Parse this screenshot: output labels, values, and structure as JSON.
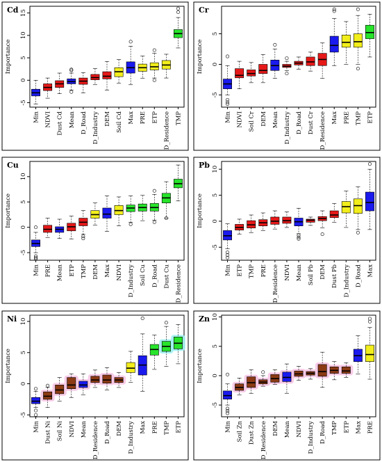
{
  "colors": {
    "blue": "#1a1aee",
    "red": "#e61919",
    "yellow": "#f2ee1c",
    "green": "#27e42b",
    "halo_pink": "#f7c6e4",
    "halo_cyan": "#9ef0ef",
    "brown": "#8b3a14"
  },
  "chart_data": [
    {
      "type": "box",
      "title": "Cd",
      "ylabel": "Importance",
      "ylim": [
        -6,
        16.5
      ],
      "yticks": [
        -5,
        0,
        5,
        10,
        15
      ],
      "categories": [
        "Min",
        "NDVI",
        "Dust Cd",
        "Mean",
        "D_Road",
        "D_Industry",
        "DEM",
        "Soil Cd",
        "Max",
        "PRE",
        "ETP",
        "D_Residence",
        "TMP"
      ],
      "colors": [
        "blue",
        "red",
        "red",
        "blue",
        "red",
        "red",
        "red",
        "yellow",
        "blue",
        "yellow",
        "yellow",
        "yellow",
        "green"
      ],
      "boxes": [
        {
          "min": -5.3,
          "q1": -3.5,
          "median": -2.8,
          "q3": -2.0,
          "max": 0.0,
          "outliers": []
        },
        {
          "min": -4.0,
          "q1": -2.3,
          "median": -1.6,
          "q3": -0.8,
          "max": 0.5,
          "outliers": []
        },
        {
          "min": -3.0,
          "q1": -1.6,
          "median": -0.8,
          "q3": -0.1,
          "max": 1.6,
          "outliers": []
        },
        {
          "min": -2.2,
          "q1": -0.8,
          "median": -0.3,
          "q3": 0.3,
          "max": 1.6,
          "outliers": [
            2.2,
            2.4,
            -2.6
          ]
        },
        {
          "min": -2.8,
          "q1": -0.9,
          "median": -0.2,
          "q3": 0.5,
          "max": 1.7,
          "outliers": []
        },
        {
          "min": -1.0,
          "q1": 0.1,
          "median": 0.6,
          "q3": 1.3,
          "max": 2.6,
          "outliers": []
        },
        {
          "min": -2.2,
          "q1": 0.3,
          "median": 0.9,
          "q3": 1.9,
          "max": 4.2,
          "outliers": []
        },
        {
          "min": -0.7,
          "q1": 0.8,
          "median": 1.9,
          "q3": 2.8,
          "max": 4.6,
          "outliers": []
        },
        {
          "min": -1.0,
          "q1": 1.6,
          "median": 2.8,
          "q3": 4.1,
          "max": 7.6,
          "outliers": [
            8.6
          ]
        },
        {
          "min": 0.4,
          "q1": 2.0,
          "median": 2.8,
          "q3": 3.6,
          "max": 5.4,
          "outliers": []
        },
        {
          "min": 0.5,
          "q1": 2.3,
          "median": 3.0,
          "q3": 3.9,
          "max": 6.0,
          "outliers": [
            6.7,
            0.0
          ]
        },
        {
          "min": 0.5,
          "q1": 2.5,
          "median": 3.4,
          "q3": 4.4,
          "max": 5.8,
          "outliers": []
        },
        {
          "min": 7.2,
          "q1": 9.5,
          "median": 10.4,
          "q3": 11.3,
          "max": 14.0,
          "outliers": [
            15.2,
            16.0
          ]
        }
      ]
    },
    {
      "type": "box",
      "title": "Cr",
      "ylabel": "Importance",
      "ylim": [
        -7,
        9.5
      ],
      "yticks": [
        -5,
        0,
        5
      ],
      "categories": [
        "Min",
        "NDVI",
        "Soil Cr",
        "DEM",
        "Mean",
        "D_Industry",
        "D_Road",
        "Dust Cr",
        "D_Residence",
        "Max",
        "PRE",
        "TMP",
        "ETP"
      ],
      "colors": [
        "blue",
        "red",
        "red",
        "red",
        "blue",
        "red",
        "red",
        "red",
        "red",
        "blue",
        "yellow",
        "yellow",
        "green"
      ],
      "boxes": [
        {
          "min": -5.0,
          "q1": -4.0,
          "median": -3.2,
          "q3": -2.4,
          "max": -0.2,
          "outliers": [
            1.3,
            -5.8,
            -6.2,
            -6.5
          ]
        },
        {
          "min": -4.0,
          "q1": -2.2,
          "median": -1.8,
          "q3": -0.7,
          "max": 0.5,
          "outliers": []
        },
        {
          "min": -3.0,
          "q1": -1.9,
          "median": -1.5,
          "q3": -0.9,
          "max": 0.3,
          "outliers": []
        },
        {
          "min": -3.0,
          "q1": -1.5,
          "median": -1.0,
          "q3": 0.0,
          "max": 1.6,
          "outliers": []
        },
        {
          "min": -2.3,
          "q1": -1.0,
          "median": -0.2,
          "q3": 0.7,
          "max": 2.5,
          "outliers": [
            3.2
          ]
        },
        {
          "min": -1.0,
          "q1": -0.5,
          "median": -0.3,
          "q3": 0.0,
          "max": 0.5,
          "outliers": [
            1.0,
            -1.5
          ]
        },
        {
          "min": -0.8,
          "q1": -0.1,
          "median": 0.2,
          "q3": 0.5,
          "max": 1.2,
          "outliers": []
        },
        {
          "min": -1.1,
          "q1": -0.2,
          "median": 0.4,
          "q3": 1.2,
          "max": 2.0,
          "outliers": []
        },
        {
          "min": -2.3,
          "q1": -0.2,
          "median": 0.8,
          "q3": 1.8,
          "max": 3.5,
          "outliers": []
        },
        {
          "min": -0.2,
          "q1": 2.0,
          "median": 3.1,
          "q3": 4.6,
          "max": 7.5,
          "outliers": [
            8.7,
            9.0
          ]
        },
        {
          "min": 0.0,
          "q1": 2.8,
          "median": 3.6,
          "q3": 4.8,
          "max": 7.0,
          "outliers": []
        },
        {
          "min": 0.0,
          "q1": 2.8,
          "median": 3.7,
          "q3": 5.0,
          "max": 8.0,
          "outliers": [
            9.0,
            -0.7
          ]
        },
        {
          "min": 1.2,
          "q1": 4.2,
          "median": 5.2,
          "q3": 6.4,
          "max": 8.2,
          "outliers": []
        }
      ]
    },
    {
      "type": "box",
      "title": "Cu",
      "ylabel": "Importance",
      "ylim": [
        -6.5,
        13
      ],
      "yticks": [
        -5,
        0,
        5,
        10
      ],
      "categories": [
        "Min",
        "PRE",
        "Mean",
        "ETP",
        "TMP",
        "DEM",
        "Max",
        "NDVI",
        "D_Industry",
        "Soil Cu",
        "D_Road",
        "Dust Cu",
        "D_Residence"
      ],
      "colors": [
        "blue",
        "red",
        "blue",
        "red",
        "red",
        "yellow",
        "blue",
        "yellow",
        "green",
        "green",
        "green",
        "green",
        "green"
      ],
      "boxes": [
        {
          "min": -5.0,
          "q1": -3.8,
          "median": -3.2,
          "q3": -2.5,
          "max": -1.0,
          "outliers": [
            0.0,
            -5.7,
            -6.0,
            -6.3
          ]
        },
        {
          "min": -2.0,
          "q1": -1.0,
          "median": -0.4,
          "q3": 0.4,
          "max": 1.8,
          "outliers": []
        },
        {
          "min": -2.2,
          "q1": -1.0,
          "median": -0.4,
          "q3": 0.1,
          "max": 1.6,
          "outliers": []
        },
        {
          "min": -2.3,
          "q1": -0.7,
          "median": 0.1,
          "q3": 0.8,
          "max": 2.2,
          "outliers": []
        },
        {
          "min": -1.4,
          "q1": 0.3,
          "median": 1.0,
          "q3": 1.8,
          "max": 3.3,
          "outliers": [
            -1.8,
            -2.2
          ]
        },
        {
          "min": 0.4,
          "q1": 1.8,
          "median": 2.5,
          "q3": 3.3,
          "max": 4.8,
          "outliers": []
        },
        {
          "min": -0.8,
          "q1": 1.8,
          "median": 2.6,
          "q3": 3.8,
          "max": 6.2,
          "outliers": []
        },
        {
          "min": 0.3,
          "q1": 2.5,
          "median": 3.3,
          "q3": 4.3,
          "max": 6.0,
          "outliers": []
        },
        {
          "min": 1.0,
          "q1": 3.1,
          "median": 3.8,
          "q3": 4.4,
          "max": 6.2,
          "outliers": [
            0.6
          ]
        },
        {
          "min": 1.3,
          "q1": 3.2,
          "median": 3.9,
          "q3": 4.6,
          "max": 6.3,
          "outliers": []
        },
        {
          "min": 1.4,
          "q1": 3.2,
          "median": 3.9,
          "q3": 4.7,
          "max": 6.5,
          "outliers": [
            7.2,
            1.0
          ]
        },
        {
          "min": 1.8,
          "q1": 4.8,
          "median": 5.8,
          "q3": 6.7,
          "max": 9.0,
          "outliers": [
            1.8
          ]
        },
        {
          "min": 5.2,
          "q1": 7.8,
          "median": 8.6,
          "q3": 9.5,
          "max": 12.3,
          "outliers": []
        }
      ]
    },
    {
      "type": "box",
      "title": "Pb",
      "ylabel": "Importance",
      "ylim": [
        -7.5,
        11.5
      ],
      "yticks": [
        -5,
        0,
        5,
        10
      ],
      "categories": [
        "Min",
        "ETP",
        "TMP",
        "PRE",
        "D_Residence",
        "NDVI",
        "Mean",
        "Soil Pb",
        "DEM",
        "Dust Pb",
        "D_Industry",
        "D_Road",
        "Max"
      ],
      "colors": [
        "blue",
        "red",
        "red",
        "red",
        "red",
        "red",
        "blue",
        "red",
        "red",
        "red",
        "yellow",
        "yellow",
        "blue"
      ],
      "boxes": [
        {
          "min": -5.3,
          "q1": -3.6,
          "median": -2.8,
          "q3": -1.8,
          "max": -0.5,
          "outliers": [
            -6.0,
            -6.5,
            -7.0
          ]
        },
        {
          "min": -2.5,
          "q1": -1.7,
          "median": -1.2,
          "q3": -0.6,
          "max": 0.4,
          "outliers": []
        },
        {
          "min": -2.2,
          "q1": -1.3,
          "median": -0.7,
          "q3": 0.1,
          "max": 1.2,
          "outliers": []
        },
        {
          "min": -1.8,
          "q1": -0.9,
          "median": -0.3,
          "q3": 0.3,
          "max": 1.6,
          "outliers": []
        },
        {
          "min": -1.5,
          "q1": -0.6,
          "median": 0.0,
          "q3": 0.8,
          "max": 2.0,
          "outliers": []
        },
        {
          "min": -1.2,
          "q1": -0.4,
          "median": 0.1,
          "q3": 0.8,
          "max": 1.8,
          "outliers": []
        },
        {
          "min": -2.4,
          "q1": -0.9,
          "median": -0.1,
          "q3": 0.6,
          "max": 2.5,
          "outliers": [
            -2.7,
            -3.1,
            -3.4
          ]
        },
        {
          "min": -0.8,
          "q1": -0.2,
          "median": 0.2,
          "q3": 0.4,
          "max": 0.8,
          "outliers": []
        },
        {
          "min": -1.3,
          "q1": 0.1,
          "median": 0.5,
          "q3": 0.9,
          "max": 2.0,
          "outliers": [
            -2.5
          ]
        },
        {
          "min": -0.2,
          "q1": 0.7,
          "median": 1.2,
          "q3": 2.0,
          "max": 3.4,
          "outliers": []
        },
        {
          "min": -1.2,
          "q1": 1.6,
          "median": 2.8,
          "q3": 3.8,
          "max": 5.8,
          "outliers": []
        },
        {
          "min": -1.6,
          "q1": 1.5,
          "median": 3.0,
          "q3": 4.3,
          "max": 6.6,
          "outliers": [
            -2.2
          ]
        },
        {
          "min": -1.6,
          "q1": 2.0,
          "median": 3.6,
          "q3": 5.6,
          "max": 10.0,
          "outliers": [
            11.0
          ]
        }
      ]
    },
    {
      "type": "box",
      "title": "Ni",
      "ylabel": "Importance",
      "ylim": [
        -5.3,
        11
      ],
      "yticks": [
        -5,
        0,
        5,
        10
      ],
      "categories": [
        "Min",
        "Dust Ni",
        "Soil Ni",
        "NDVI",
        "Mean",
        "D_Residence",
        "D_Road",
        "DEM",
        "D_Industry",
        "Max",
        "PRE",
        "TMP",
        "ETP"
      ],
      "colors": [
        "blue",
        "brown",
        "brown",
        "brown",
        "blue",
        "brown",
        "brown",
        "brown",
        "yellow",
        "blue",
        "green",
        "green",
        "green"
      ],
      "halos": [
        "none",
        "pink",
        "pink",
        "pink",
        "pink",
        "pink",
        "pink",
        "pink",
        "none",
        "none",
        "none",
        "cyan",
        "cyan"
      ],
      "boxes": [
        {
          "min": -3.8,
          "q1": -3.2,
          "median": -2.8,
          "q3": -2.2,
          "max": -1.2,
          "outliers": [
            -0.8,
            -4.3,
            -5.0
          ]
        },
        {
          "min": -3.8,
          "q1": -2.5,
          "median": -2.0,
          "q3": -1.3,
          "max": -0.6,
          "outliers": [
            -0.3
          ]
        },
        {
          "min": -2.8,
          "q1": -1.6,
          "median": -1.0,
          "q3": -0.2,
          "max": 1.0,
          "outliers": []
        },
        {
          "min": -2.2,
          "q1": -0.8,
          "median": -0.2,
          "q3": 1.0,
          "max": 1.6,
          "outliers": []
        },
        {
          "min": -1.8,
          "q1": -0.6,
          "median": -0.2,
          "q3": 0.4,
          "max": 1.6,
          "outliers": []
        },
        {
          "min": -0.6,
          "q1": 0.2,
          "median": 0.6,
          "q3": 1.2,
          "max": 2.2,
          "outliers": []
        },
        {
          "min": -1.0,
          "q1": 0.1,
          "median": 0.6,
          "q3": 1.4,
          "max": 2.6,
          "outliers": []
        },
        {
          "min": -0.6,
          "q1": 0.2,
          "median": 0.6,
          "q3": 1.0,
          "max": 1.8,
          "outliers": []
        },
        {
          "min": 0.2,
          "q1": 1.8,
          "median": 2.5,
          "q3": 3.4,
          "max": 5.2,
          "outliers": []
        },
        {
          "min": -1.2,
          "q1": 1.4,
          "median": 3.0,
          "q3": 4.5,
          "max": 8.0,
          "outliers": [
            10.5
          ]
        },
        {
          "min": 2.3,
          "q1": 4.6,
          "median": 5.5,
          "q3": 6.3,
          "max": 7.8,
          "outliers": []
        },
        {
          "min": 2.8,
          "q1": 5.2,
          "median": 6.0,
          "q3": 6.8,
          "max": 9.2,
          "outliers": [
            9.8
          ]
        },
        {
          "min": 3.2,
          "q1": 5.6,
          "median": 6.5,
          "q3": 7.5,
          "max": 9.5,
          "outliers": []
        }
      ]
    },
    {
      "type": "box",
      "title": "Zn",
      "ylabel": "Importance",
      "ylim": [
        -7,
        10.3
      ],
      "yticks": [
        -5,
        0,
        5,
        10
      ],
      "categories": [
        "Min",
        "Soil Zn",
        "Dust Zn",
        "D_Residence",
        "DEM",
        "Mean",
        "NDVI",
        "D_Industry",
        "D_Road",
        "TMP",
        "ETP",
        "Max",
        "PRE"
      ],
      "colors": [
        "blue",
        "brown",
        "brown",
        "brown",
        "brown",
        "blue",
        "brown",
        "brown",
        "brown",
        "brown",
        "brown",
        "blue",
        "yellow"
      ],
      "halos": [
        "none",
        "pink",
        "pink",
        "pink",
        "pink",
        "pink",
        "pink",
        "pink",
        "pink",
        "pink",
        "pink",
        "none",
        "none"
      ],
      "boxes": [
        {
          "min": -5.0,
          "q1": -4.0,
          "median": -3.4,
          "q3": -2.6,
          "max": -1.4,
          "outliers": [
            0.2,
            -5.6,
            -6.0,
            -6.4
          ]
        },
        {
          "min": -3.3,
          "q1": -2.5,
          "median": -2.0,
          "q3": -1.4,
          "max": -0.4,
          "outliers": []
        },
        {
          "min": -3.0,
          "q1": -2.0,
          "median": -1.2,
          "q3": -0.2,
          "max": 1.0,
          "outliers": []
        },
        {
          "min": -1.8,
          "q1": -1.4,
          "median": -1.1,
          "q3": -0.7,
          "max": 0.0,
          "outliers": [
            0.6
          ]
        },
        {
          "min": -1.5,
          "q1": -1.1,
          "median": -0.5,
          "q3": 0.2,
          "max": 1.0,
          "outliers": []
        },
        {
          "min": -3.0,
          "q1": -1.0,
          "median": -0.3,
          "q3": 0.6,
          "max": 2.0,
          "outliers": []
        },
        {
          "min": -0.8,
          "q1": -0.1,
          "median": 0.3,
          "q3": 0.8,
          "max": 1.6,
          "outliers": []
        },
        {
          "min": -0.6,
          "q1": 0.1,
          "median": 0.4,
          "q3": 0.7,
          "max": 1.2,
          "outliers": []
        },
        {
          "min": -2.0,
          "q1": -0.1,
          "median": 0.7,
          "q3": 1.9,
          "max": 4.0,
          "outliers": []
        },
        {
          "min": -0.7,
          "q1": 0.4,
          "median": 0.9,
          "q3": 1.5,
          "max": 2.4,
          "outliers": []
        },
        {
          "min": -0.3,
          "q1": 0.4,
          "median": 0.8,
          "q3": 1.5,
          "max": 2.2,
          "outliers": []
        },
        {
          "min": 0.3,
          "q1": 2.4,
          "median": 3.4,
          "q3": 4.5,
          "max": 6.8,
          "outliers": []
        },
        {
          "min": -0.6,
          "q1": 2.4,
          "median": 3.6,
          "q3": 5.2,
          "max": 8.2,
          "outliers": [
            9.2,
            9.7
          ]
        }
      ]
    }
  ]
}
